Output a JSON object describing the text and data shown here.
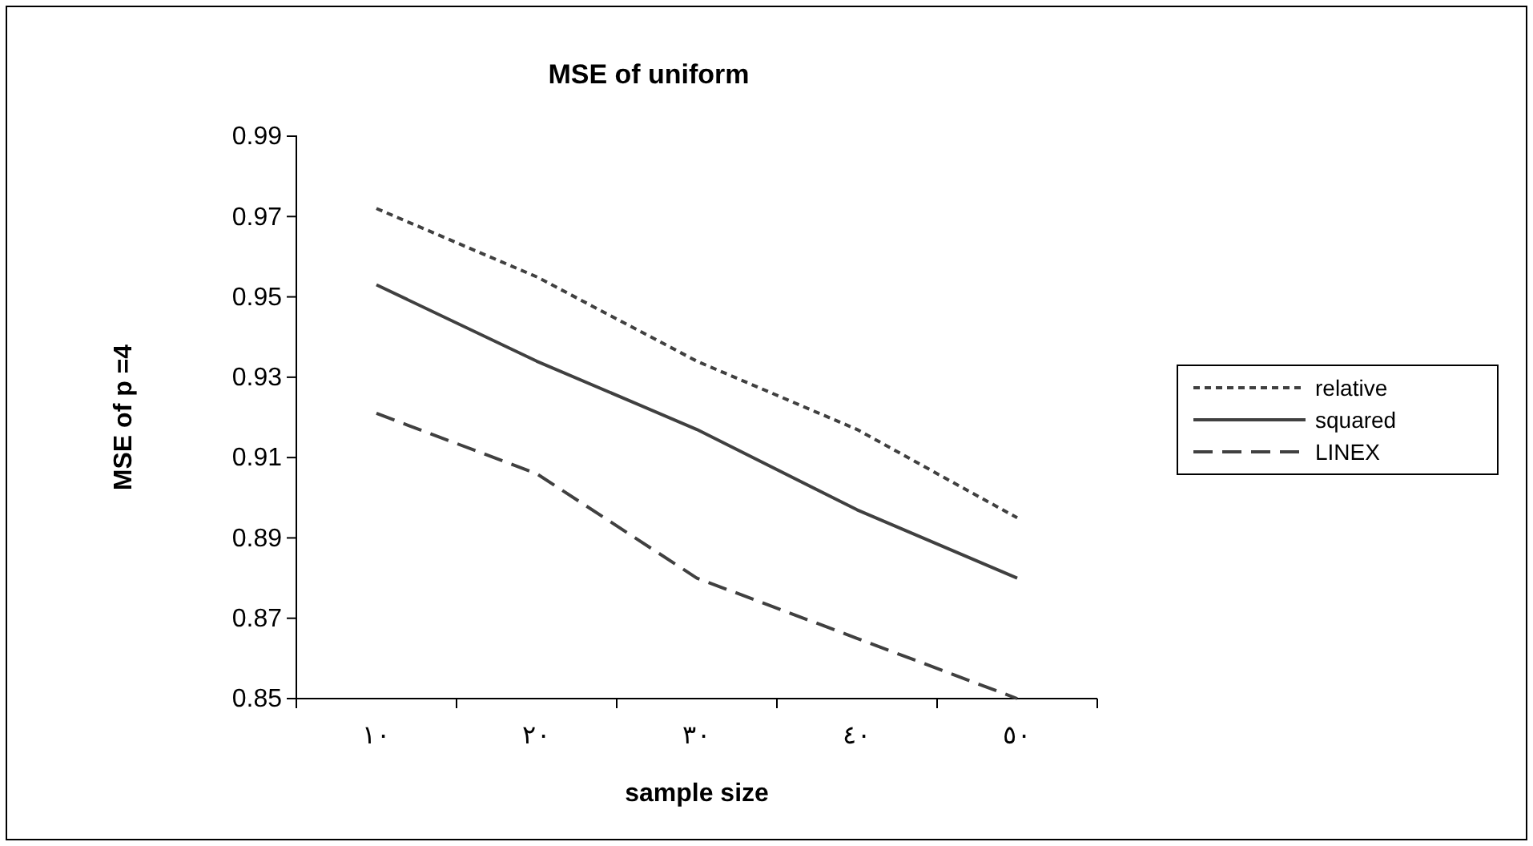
{
  "chart_data": {
    "type": "line",
    "title": "MSE of uniform",
    "xlabel": "sample size",
    "ylabel": "MSE of p =4",
    "categories": [
      "١٠",
      "٢٠",
      "٣٠",
      "٤٠",
      "٥٠"
    ],
    "series": [
      {
        "name": "relative",
        "color": "#404040",
        "line_style": "dotted",
        "values": [
          0.972,
          0.955,
          0.934,
          0.917,
          0.895
        ]
      },
      {
        "name": "squared",
        "color": "#404040",
        "line_style": "solid",
        "values": [
          0.953,
          0.934,
          0.917,
          0.897,
          0.88
        ]
      },
      {
        "name": "LINEX",
        "color": "#404040",
        "line_style": "dashed",
        "values": [
          0.921,
          0.906,
          0.88,
          0.865,
          0.85
        ]
      }
    ],
    "ylim": [
      0.85,
      0.99
    ],
    "yticks": [
      0.85,
      0.87,
      0.89,
      0.91,
      0.93,
      0.95,
      0.97,
      0.99
    ],
    "legend": "right",
    "grid": false,
    "marker": "none"
  }
}
